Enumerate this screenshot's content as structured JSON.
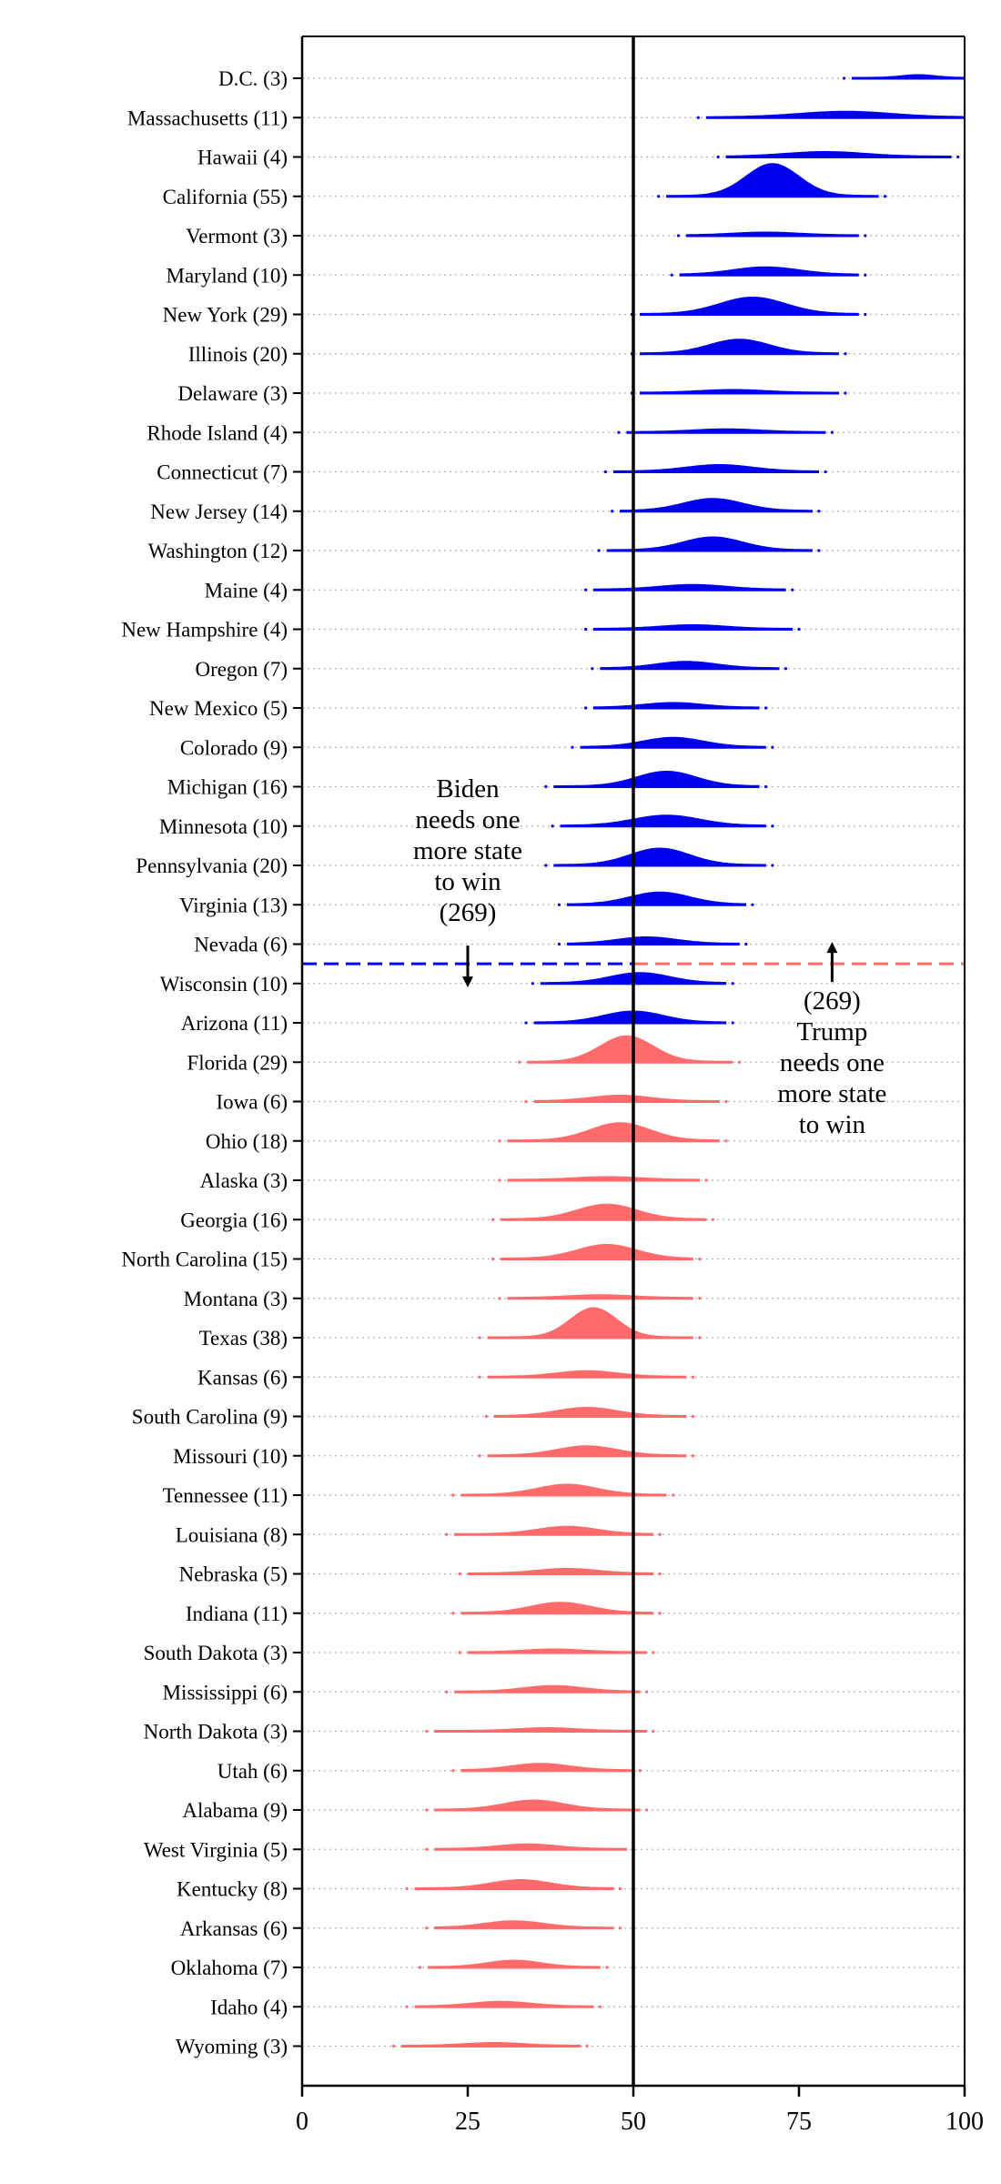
{
  "chart_data": {
    "type": "scatter",
    "title": "",
    "xlabel": "",
    "ylabel": "",
    "xlim": [
      0,
      100
    ],
    "xticks": [
      "0",
      "25",
      "50",
      "75",
      "100"
    ],
    "grid": "dotted horizontal lines at each state row",
    "colors": {
      "biden": "#0000ee",
      "trump": "#ff6b6b",
      "axis": "#000000"
    },
    "reference_line_x": 50,
    "states": [
      {
        "name": "D.C.",
        "ev": 3,
        "label": "D.C. (3)",
        "mean": 93,
        "sd": 2.5,
        "min": 83,
        "max": 100,
        "peak": 3,
        "party": "biden"
      },
      {
        "name": "Massachusetts",
        "ev": 11,
        "label": "Massachusetts (11)",
        "mean": 82,
        "sd": 7,
        "min": 61,
        "max": 100,
        "peak": 6,
        "party": "biden"
      },
      {
        "name": "Hawaii",
        "ev": 4,
        "label": "Hawaii (4)",
        "mean": 79,
        "sd": 6,
        "min": 64,
        "max": 98,
        "peak": 5,
        "party": "biden"
      },
      {
        "name": "California",
        "ev": 55,
        "label": "California (55)",
        "mean": 71,
        "sd": 4,
        "min": 55,
        "max": 87,
        "peak": 35,
        "party": "biden"
      },
      {
        "name": "Vermont",
        "ev": 3,
        "label": "Vermont (3)",
        "mean": 70,
        "sd": 5,
        "min": 58,
        "max": 84,
        "peak": 3,
        "party": "biden"
      },
      {
        "name": "Maryland",
        "ev": 10,
        "label": "Maryland (10)",
        "mean": 70,
        "sd": 5,
        "min": 57,
        "max": 84,
        "peak": 8,
        "party": "biden"
      },
      {
        "name": "New York",
        "ev": 29,
        "label": "New York (29)",
        "mean": 68,
        "sd": 5,
        "min": 51,
        "max": 84,
        "peak": 18,
        "party": "biden"
      },
      {
        "name": "Illinois",
        "ev": 20,
        "label": "Illinois (20)",
        "mean": 66,
        "sd": 4.5,
        "min": 51,
        "max": 81,
        "peak": 15,
        "party": "biden"
      },
      {
        "name": "Delaware",
        "ev": 3,
        "label": "Delaware (3)",
        "mean": 65,
        "sd": 5,
        "min": 51,
        "max": 81,
        "peak": 3,
        "party": "biden"
      },
      {
        "name": "Rhode Island",
        "ev": 4,
        "label": "Rhode Island (4)",
        "mean": 64,
        "sd": 5,
        "min": 49,
        "max": 79,
        "peak": 3,
        "party": "biden"
      },
      {
        "name": "Connecticut",
        "ev": 7,
        "label": "Connecticut (7)",
        "mean": 63,
        "sd": 5,
        "min": 47,
        "max": 78,
        "peak": 7,
        "party": "biden"
      },
      {
        "name": "New Jersey",
        "ev": 14,
        "label": "New Jersey (14)",
        "mean": 62,
        "sd": 4.5,
        "min": 48,
        "max": 77,
        "peak": 13,
        "party": "biden"
      },
      {
        "name": "Washington",
        "ev": 12,
        "label": "Washington (12)",
        "mean": 62,
        "sd": 4.5,
        "min": 46,
        "max": 77,
        "peak": 14,
        "party": "biden"
      },
      {
        "name": "Maine",
        "ev": 4,
        "label": "Maine (4)",
        "mean": 59,
        "sd": 5,
        "min": 44,
        "max": 73,
        "peak": 5,
        "party": "biden"
      },
      {
        "name": "New Hampshire",
        "ev": 4,
        "label": "New Hampshire (4)",
        "mean": 59,
        "sd": 5,
        "min": 44,
        "max": 74,
        "peak": 4,
        "party": "biden"
      },
      {
        "name": "Oregon",
        "ev": 7,
        "label": "Oregon (7)",
        "mean": 58,
        "sd": 4.5,
        "min": 45,
        "max": 72,
        "peak": 7,
        "party": "biden"
      },
      {
        "name": "New Mexico",
        "ev": 5,
        "label": "New Mexico (5)",
        "mean": 56,
        "sd": 4.5,
        "min": 44,
        "max": 69,
        "peak": 5,
        "party": "biden"
      },
      {
        "name": "Colorado",
        "ev": 9,
        "label": "Colorado (9)",
        "mean": 56,
        "sd": 4.5,
        "min": 42,
        "max": 70,
        "peak": 10,
        "party": "biden"
      },
      {
        "name": "Michigan",
        "ev": 16,
        "label": "Michigan (16)",
        "mean": 55,
        "sd": 4.5,
        "min": 38,
        "max": 69,
        "peak": 16,
        "party": "biden"
      },
      {
        "name": "Minnesota",
        "ev": 10,
        "label": "Minnesota (10)",
        "mean": 55,
        "sd": 5,
        "min": 39,
        "max": 70,
        "peak": 11,
        "party": "biden"
      },
      {
        "name": "Pennsylvania",
        "ev": 20,
        "label": "Pennsylvania (20)",
        "mean": 54,
        "sd": 4.5,
        "min": 38,
        "max": 70,
        "peak": 18,
        "party": "biden"
      },
      {
        "name": "Virginia",
        "ev": 13,
        "label": "Virginia (13)",
        "mean": 54,
        "sd": 4.5,
        "min": 40,
        "max": 67,
        "peak": 13,
        "party": "biden"
      },
      {
        "name": "Nevada",
        "ev": 6,
        "label": "Nevada (6)",
        "mean": 52,
        "sd": 4.5,
        "min": 40,
        "max": 66,
        "peak": 7,
        "party": "biden"
      },
      {
        "name": "Wisconsin",
        "ev": 10,
        "label": "Wisconsin (10)",
        "mean": 51,
        "sd": 4.5,
        "min": 36,
        "max": 64,
        "peak": 11,
        "party": "biden"
      },
      {
        "name": "Arizona",
        "ev": 11,
        "label": "Arizona (11)",
        "mean": 50,
        "sd": 4.5,
        "min": 35,
        "max": 64,
        "peak": 12,
        "party": "biden"
      },
      {
        "name": "Florida",
        "ev": 29,
        "label": "Florida (29)",
        "mean": 49,
        "sd": 4,
        "min": 34,
        "max": 65,
        "peak": 28,
        "party": "trump"
      },
      {
        "name": "Iowa",
        "ev": 6,
        "label": "Iowa (6)",
        "mean": 48,
        "sd": 4.5,
        "min": 35,
        "max": 63,
        "peak": 6,
        "party": "trump"
      },
      {
        "name": "Ohio",
        "ev": 18,
        "label": "Ohio (18)",
        "mean": 48,
        "sd": 4.5,
        "min": 31,
        "max": 63,
        "peak": 19,
        "party": "trump"
      },
      {
        "name": "Alaska",
        "ev": 3,
        "label": "Alaska (3)",
        "mean": 46,
        "sd": 5,
        "min": 31,
        "max": 60,
        "peak": 3,
        "party": "trump"
      },
      {
        "name": "Georgia",
        "ev": 16,
        "label": "Georgia (16)",
        "mean": 46,
        "sd": 4.5,
        "min": 30,
        "max": 61,
        "peak": 16,
        "party": "trump"
      },
      {
        "name": "North Carolina",
        "ev": 15,
        "label": "North Carolina (15)",
        "mean": 46,
        "sd": 4.5,
        "min": 30,
        "max": 59,
        "peak": 15,
        "party": "trump"
      },
      {
        "name": "Montana",
        "ev": 3,
        "label": "Montana (3)",
        "mean": 45,
        "sd": 5,
        "min": 31,
        "max": 59,
        "peak": 3,
        "party": "trump"
      },
      {
        "name": "Texas",
        "ev": 38,
        "label": "Texas (38)",
        "mean": 44,
        "sd": 3.5,
        "min": 28,
        "max": 59,
        "peak": 32,
        "party": "trump"
      },
      {
        "name": "Kansas",
        "ev": 6,
        "label": "Kansas (6)",
        "mean": 43,
        "sd": 4.5,
        "min": 28,
        "max": 58,
        "peak": 6,
        "party": "trump"
      },
      {
        "name": "South Carolina",
        "ev": 9,
        "label": "South Carolina (9)",
        "mean": 43,
        "sd": 4.5,
        "min": 29,
        "max": 58,
        "peak": 9,
        "party": "trump"
      },
      {
        "name": "Missouri",
        "ev": 10,
        "label": "Missouri (10)",
        "mean": 43,
        "sd": 4.5,
        "min": 28,
        "max": 58,
        "peak": 10,
        "party": "trump"
      },
      {
        "name": "Tennessee",
        "ev": 11,
        "label": "Tennessee (11)",
        "mean": 40,
        "sd": 4.5,
        "min": 24,
        "max": 55,
        "peak": 11,
        "party": "trump"
      },
      {
        "name": "Louisiana",
        "ev": 8,
        "label": "Louisiana (8)",
        "mean": 40,
        "sd": 4.5,
        "min": 23,
        "max": 53,
        "peak": 8,
        "party": "trump"
      },
      {
        "name": "Nebraska",
        "ev": 5,
        "label": "Nebraska (5)",
        "mean": 40,
        "sd": 4.5,
        "min": 25,
        "max": 53,
        "peak": 5,
        "party": "trump"
      },
      {
        "name": "Indiana",
        "ev": 11,
        "label": "Indiana (11)",
        "mean": 39,
        "sd": 4.5,
        "min": 24,
        "max": 53,
        "peak": 11,
        "party": "trump"
      },
      {
        "name": "South Dakota",
        "ev": 3,
        "label": "South Dakota (3)",
        "mean": 38,
        "sd": 4.5,
        "min": 25,
        "max": 52,
        "peak": 3,
        "party": "trump"
      },
      {
        "name": "Mississippi",
        "ev": 6,
        "label": "Mississippi (6)",
        "mean": 38,
        "sd": 4.5,
        "min": 23,
        "max": 51,
        "peak": 6,
        "party": "trump"
      },
      {
        "name": "North Dakota",
        "ev": 3,
        "label": "North Dakota (3)",
        "mean": 37,
        "sd": 4.5,
        "min": 20,
        "max": 52,
        "peak": 3,
        "party": "trump"
      },
      {
        "name": "Utah",
        "ev": 6,
        "label": "Utah (6)",
        "mean": 36,
        "sd": 4.5,
        "min": 24,
        "max": 50,
        "peak": 7,
        "party": "trump"
      },
      {
        "name": "Alabama",
        "ev": 9,
        "label": "Alabama (9)",
        "mean": 35,
        "sd": 4.5,
        "min": 20,
        "max": 51,
        "peak": 10,
        "party": "trump"
      },
      {
        "name": "West Virginia",
        "ev": 5,
        "label": "West Virginia (5)",
        "mean": 34,
        "sd": 4.5,
        "min": 20,
        "max": 49,
        "peak": 5,
        "party": "trump"
      },
      {
        "name": "Kentucky",
        "ev": 8,
        "label": "Kentucky (8)",
        "mean": 33,
        "sd": 4.5,
        "min": 17,
        "max": 47,
        "peak": 9,
        "party": "trump"
      },
      {
        "name": "Arkansas",
        "ev": 6,
        "label": "Arkansas (6)",
        "mean": 32,
        "sd": 4.5,
        "min": 20,
        "max": 47,
        "peak": 7,
        "party": "trump"
      },
      {
        "name": "Oklahoma",
        "ev": 7,
        "label": "Oklahoma (7)",
        "mean": 32,
        "sd": 4,
        "min": 19,
        "max": 45,
        "peak": 7,
        "party": "trump"
      },
      {
        "name": "Idaho",
        "ev": 4,
        "label": "Idaho (4)",
        "mean": 30,
        "sd": 4.5,
        "min": 17,
        "max": 44,
        "peak": 5,
        "party": "trump"
      },
      {
        "name": "Wyoming",
        "ev": 3,
        "label": "Wyoming (3)",
        "mean": 29,
        "sd": 4.5,
        "min": 15,
        "max": 42,
        "peak": 3,
        "party": "trump"
      }
    ],
    "annotations": {
      "biden": {
        "lines": [
          "Biden",
          "needs one",
          "more state",
          "to win",
          "(269)"
        ],
        "arrow": "down",
        "arrow_x": 25
      },
      "trump": {
        "lines": [
          "(269)",
          "Trump",
          "needs one",
          "more state",
          "to win"
        ],
        "arrow": "up",
        "arrow_x": 80
      }
    },
    "threshold_after_state": "Nevada"
  }
}
